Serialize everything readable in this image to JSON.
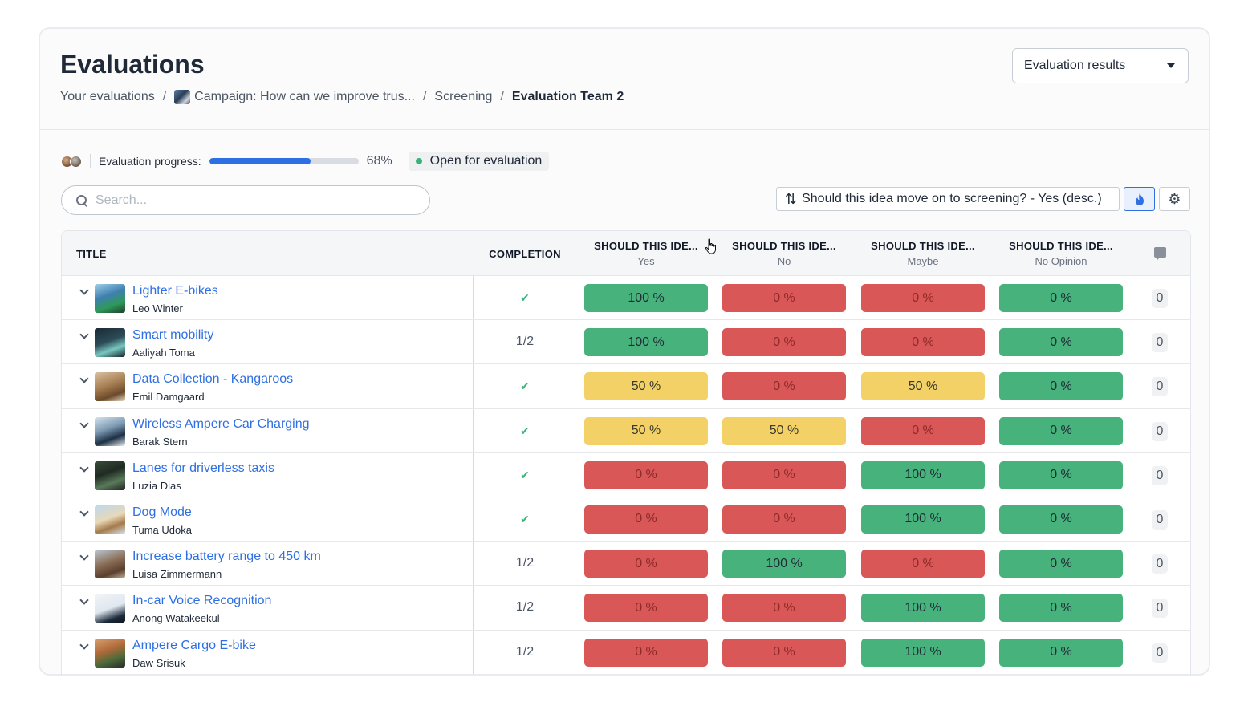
{
  "header": {
    "title": "Evaluations",
    "breadcrumb": [
      {
        "label": "Your evaluations"
      },
      {
        "label": "Campaign: How can we improve trus...",
        "has_image": true
      },
      {
        "label": "Screening"
      },
      {
        "label": "Evaluation Team 2",
        "current": true
      }
    ],
    "results_select": "Evaluation results"
  },
  "progress": {
    "label": "Evaluation progress:",
    "percent_value": 68,
    "percent_text": "68%",
    "status": "Open for evaluation",
    "status_color": "#3bb27b"
  },
  "search": {
    "placeholder": "Search...",
    "value": ""
  },
  "sort": {
    "label": "Should this idea move on to screening? - Yes (desc.)"
  },
  "table": {
    "columns": {
      "title": "TITLE",
      "completion": "COMPLETION",
      "questions": [
        {
          "title": "SHOULD THIS IDE...",
          "option": "Yes"
        },
        {
          "title": "SHOULD THIS IDE...",
          "option": "No"
        },
        {
          "title": "SHOULD THIS IDE...",
          "option": "Maybe"
        },
        {
          "title": "SHOULD THIS IDE...",
          "option": "No Opinion"
        }
      ]
    },
    "rows": [
      {
        "title": "Lighter E-bikes",
        "author": "Leo Winter",
        "completion": "✔",
        "done": true,
        "values": [
          {
            "text": "100 %",
            "color": "green"
          },
          {
            "text": "0 %",
            "color": "red"
          },
          {
            "text": "0 %",
            "color": "red"
          },
          {
            "text": "0 %",
            "color": "green"
          }
        ],
        "comments": "0"
      },
      {
        "title": "Smart mobility",
        "author": "Aaliyah Toma",
        "completion": "1/2",
        "done": false,
        "values": [
          {
            "text": "100 %",
            "color": "green"
          },
          {
            "text": "0 %",
            "color": "red"
          },
          {
            "text": "0 %",
            "color": "red"
          },
          {
            "text": "0 %",
            "color": "green"
          }
        ],
        "comments": "0"
      },
      {
        "title": "Data Collection - Kangaroos",
        "author": "Emil Damgaard",
        "completion": "✔",
        "done": true,
        "values": [
          {
            "text": "50 %",
            "color": "yellow"
          },
          {
            "text": "0 %",
            "color": "red"
          },
          {
            "text": "50 %",
            "color": "yellow"
          },
          {
            "text": "0 %",
            "color": "green"
          }
        ],
        "comments": "0"
      },
      {
        "title": "Wireless Ampere Car Charging",
        "author": "Barak Stern",
        "completion": "✔",
        "done": true,
        "values": [
          {
            "text": "50 %",
            "color": "yellow"
          },
          {
            "text": "50 %",
            "color": "yellow"
          },
          {
            "text": "0 %",
            "color": "red"
          },
          {
            "text": "0 %",
            "color": "green"
          }
        ],
        "comments": "0"
      },
      {
        "title": "Lanes for driverless taxis",
        "author": "Luzia Dias",
        "completion": "✔",
        "done": true,
        "values": [
          {
            "text": "0 %",
            "color": "red"
          },
          {
            "text": "0 %",
            "color": "red"
          },
          {
            "text": "100 %",
            "color": "green"
          },
          {
            "text": "0 %",
            "color": "green"
          }
        ],
        "comments": "0"
      },
      {
        "title": "Dog Mode",
        "author": "Tuma Udoka",
        "completion": "✔",
        "done": true,
        "values": [
          {
            "text": "0 %",
            "color": "red"
          },
          {
            "text": "0 %",
            "color": "red"
          },
          {
            "text": "100 %",
            "color": "green"
          },
          {
            "text": "0 %",
            "color": "green"
          }
        ],
        "comments": "0"
      },
      {
        "title": "Increase battery range to 450 km",
        "author": "Luisa Zimmermann",
        "completion": "1/2",
        "done": false,
        "values": [
          {
            "text": "0 %",
            "color": "red"
          },
          {
            "text": "100 %",
            "color": "green"
          },
          {
            "text": "0 %",
            "color": "red"
          },
          {
            "text": "0 %",
            "color": "green"
          }
        ],
        "comments": "0"
      },
      {
        "title": "In-car Voice Recognition",
        "author": "Anong Watakeekul",
        "completion": "1/2",
        "done": false,
        "values": [
          {
            "text": "0 %",
            "color": "red"
          },
          {
            "text": "0 %",
            "color": "red"
          },
          {
            "text": "100 %",
            "color": "green"
          },
          {
            "text": "0 %",
            "color": "green"
          }
        ],
        "comments": "0"
      },
      {
        "title": "Ampere Cargo E-bike",
        "author": "Daw Srisuk",
        "completion": "1/2",
        "done": false,
        "values": [
          {
            "text": "0 %",
            "color": "red"
          },
          {
            "text": "0 %",
            "color": "red"
          },
          {
            "text": "100 %",
            "color": "green"
          },
          {
            "text": "0 %",
            "color": "green"
          }
        ],
        "comments": "0"
      }
    ]
  },
  "colors": {
    "accent": "#2f6fe4",
    "green": "#47b27b",
    "red": "#d95757",
    "yellow": "#f3d166"
  }
}
